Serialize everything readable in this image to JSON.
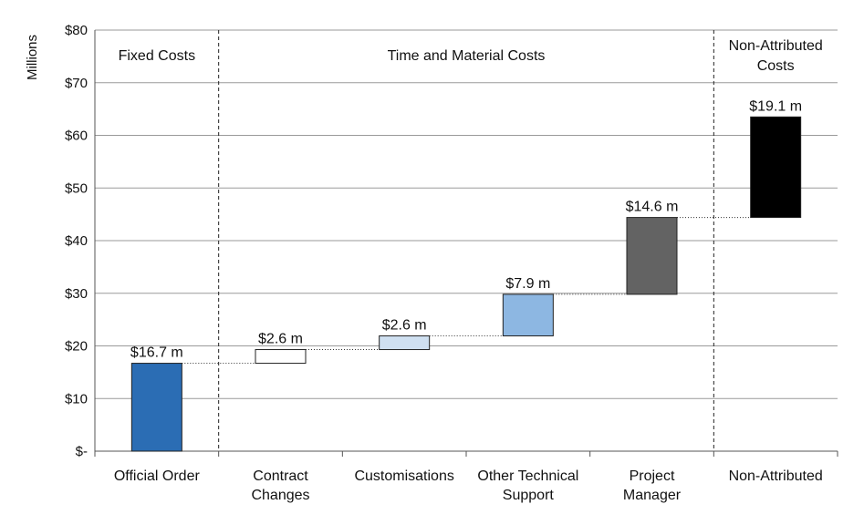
{
  "chart_data": {
    "type": "bar",
    "subtype": "waterfall",
    "ylabel": "Millions",
    "ylim": [
      0,
      80
    ],
    "yticks": [
      0,
      10,
      20,
      30,
      40,
      50,
      60,
      70,
      80
    ],
    "ytick_labels": [
      "$-",
      "$10",
      "$20",
      "$30",
      "$40",
      "$50",
      "$60",
      "$70",
      "$80"
    ],
    "grid": true,
    "legend": "none",
    "sections": [
      {
        "label": [
          "Fixed Costs"
        ],
        "from": 0,
        "to": 1
      },
      {
        "label": [
          "Time and Material Costs"
        ],
        "from": 1,
        "to": 5
      },
      {
        "label": [
          "Non-Attributed",
          "Costs"
        ],
        "from": 5,
        "to": 6
      }
    ],
    "categories": [
      [
        "Official Order"
      ],
      [
        "Contract",
        "Changes"
      ],
      [
        "Customisations"
      ],
      [
        "Other Technical",
        "Support"
      ],
      [
        "Project",
        "Manager"
      ],
      [
        "Non-Attributed"
      ]
    ],
    "values": [
      16.7,
      2.6,
      2.6,
      7.9,
      14.6,
      19.1
    ],
    "bases": [
      0,
      16.7,
      19.3,
      21.9,
      29.8,
      44.4
    ],
    "data_labels": [
      "$16.7 m",
      "$2.6 m",
      "$2.6 m",
      "$7.9 m",
      "$14.6 m",
      "$19.1 m"
    ],
    "colors": [
      "#2b6db4",
      "#ffffff",
      "#cfe0f1",
      "#8db7e2",
      "#636363",
      "#000000"
    ]
  }
}
